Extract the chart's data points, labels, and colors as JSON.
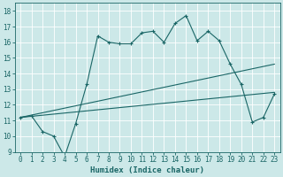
{
  "xlabel": "Humidex (Indice chaleur)",
  "bg_color": "#cce8e8",
  "line_color": "#1a6666",
  "grid_color": "#ffffff",
  "xlim": [
    -0.5,
    23.5
  ],
  "ylim": [
    9.0,
    18.5
  ],
  "yticks": [
    9,
    10,
    11,
    12,
    13,
    14,
    15,
    16,
    17,
    18
  ],
  "xticks": [
    0,
    1,
    2,
    3,
    4,
    5,
    6,
    7,
    8,
    9,
    10,
    11,
    12,
    13,
    14,
    15,
    16,
    17,
    18,
    19,
    20,
    21,
    22,
    23
  ],
  "series1_x": [
    0,
    1,
    2,
    3,
    4,
    5,
    6,
    7,
    8,
    9,
    10,
    11,
    12,
    13,
    14,
    15,
    16,
    17,
    18,
    19,
    20,
    21,
    22,
    23
  ],
  "series1_y": [
    11.2,
    11.3,
    10.3,
    10.0,
    8.7,
    10.8,
    13.3,
    16.4,
    16.0,
    15.9,
    15.9,
    16.6,
    16.7,
    16.0,
    17.2,
    17.7,
    16.1,
    16.7,
    16.1,
    14.6,
    13.3,
    10.9,
    11.2,
    12.7
  ],
  "series2_x": [
    0,
    23
  ],
  "series2_y": [
    11.2,
    12.8
  ],
  "series3_x": [
    0,
    23
  ],
  "series3_y": [
    11.2,
    14.6
  ],
  "marker_x": [
    0,
    1,
    2,
    3,
    4,
    5,
    6,
    7,
    8,
    9,
    10,
    11,
    12,
    13,
    14,
    15,
    16,
    17,
    18,
    19,
    20,
    21,
    22,
    23
  ],
  "marker_y": [
    11.2,
    11.3,
    10.3,
    10.0,
    8.7,
    10.8,
    13.3,
    16.4,
    16.0,
    15.9,
    15.9,
    16.6,
    16.7,
    16.0,
    17.2,
    17.7,
    16.1,
    16.7,
    16.1,
    14.6,
    13.3,
    10.9,
    11.2,
    12.7
  ]
}
